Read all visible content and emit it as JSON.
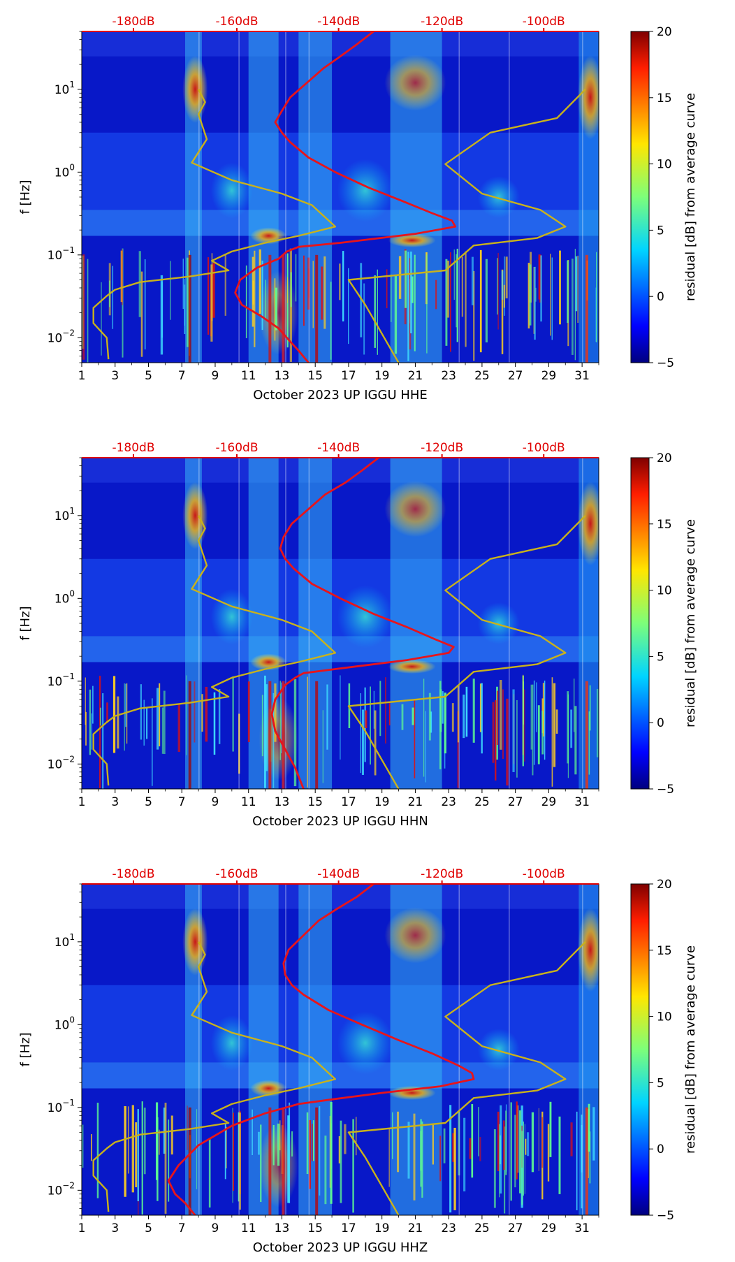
{
  "chart_data": [
    {
      "type": "heatmap",
      "xlabel": "October 2023 UP IGGU  HHE",
      "ylabel": "f [Hz]",
      "x_ticks": [
        "1",
        "3",
        "5",
        "7",
        "9",
        "11",
        "13",
        "15",
        "17",
        "19",
        "21",
        "23",
        "25",
        "27",
        "29",
        "31"
      ],
      "xlim": [
        1,
        32
      ],
      "y_scale": "log",
      "ylim": [
        0.005,
        50
      ],
      "y_ticks": [
        {
          "value": 0.01,
          "base": "10",
          "exp": "−2"
        },
        {
          "value": 0.1,
          "base": "10",
          "exp": "−1"
        },
        {
          "value": 1,
          "base": "10",
          "exp": "0"
        },
        {
          "value": 10,
          "base": "10",
          "exp": "1"
        }
      ],
      "top_axis": {
        "color": "#e00000",
        "ticks": [
          {
            "day": 4.1,
            "label": "-180dB"
          },
          {
            "day": 10.3,
            "label": "-160dB"
          },
          {
            "day": 16.4,
            "label": "-140dB"
          },
          {
            "day": 22.6,
            "label": "-120dB"
          },
          {
            "day": 28.7,
            "label": "-100dB"
          }
        ]
      },
      "colorbar": {
        "label": "residual [dB] from average curve",
        "range": [
          -5,
          20
        ],
        "ticks": [
          "−5",
          "0",
          "5",
          "10",
          "15",
          "20"
        ]
      },
      "series": [
        {
          "color": "#e8141a",
          "points": [
            [
              18.5,
              50
            ],
            [
              17.5,
              35
            ],
            [
              16.5,
              25
            ],
            [
              15.5,
              18
            ],
            [
              14.5,
              12
            ],
            [
              13.5,
              8
            ],
            [
              13.0,
              5.5
            ],
            [
              12.6,
              4
            ],
            [
              13.0,
              3
            ],
            [
              13.5,
              2.3
            ],
            [
              14.6,
              1.5
            ],
            [
              16.2,
              1.0
            ],
            [
              18.2,
              0.65
            ],
            [
              20.2,
              0.45
            ],
            [
              22.0,
              0.32
            ],
            [
              23.2,
              0.26
            ],
            [
              23.4,
              0.22
            ],
            [
              21.0,
              0.18
            ],
            [
              16.5,
              0.14
            ],
            [
              14.0,
              0.125
            ],
            [
              13.3,
              0.11
            ],
            [
              12.8,
              0.09
            ],
            [
              11.5,
              0.07
            ],
            [
              10.5,
              0.05
            ],
            [
              10.2,
              0.035
            ],
            [
              10.6,
              0.025
            ],
            [
              11.8,
              0.018
            ],
            [
              12.8,
              0.013
            ],
            [
              13.5,
              0.009
            ],
            [
              14.0,
              0.007
            ],
            [
              14.6,
              0.005
            ]
          ]
        },
        {
          "color": "#c9b21c",
          "points": [
            [
              8.0,
              10
            ],
            [
              8.4,
              7
            ],
            [
              8.0,
              5
            ],
            [
              8.5,
              2.5
            ],
            [
              7.6,
              1.3
            ],
            [
              10.0,
              0.8
            ],
            [
              13.0,
              0.55
            ],
            [
              14.8,
              0.4
            ],
            [
              16.2,
              0.22
            ],
            [
              14.0,
              0.17
            ],
            [
              12.0,
              0.14
            ],
            [
              10.0,
              0.11
            ],
            [
              8.8,
              0.085
            ],
            [
              9.8,
              0.065
            ],
            [
              7.5,
              0.055
            ],
            [
              4.5,
              0.047
            ],
            [
              3.0,
              0.038
            ],
            [
              2.5,
              0.032
            ],
            [
              1.7,
              0.023
            ],
            [
              1.7,
              0.015
            ],
            [
              2.5,
              0.01
            ],
            [
              2.6,
              0.0055
            ]
          ]
        },
        {
          "color": "#c9b21c",
          "points": [
            [
              31.2,
              10
            ],
            [
              29.5,
              4.5
            ],
            [
              25.5,
              3.0
            ],
            [
              22.8,
              1.25
            ],
            [
              25.0,
              0.55
            ],
            [
              28.5,
              0.35
            ],
            [
              30.0,
              0.22
            ],
            [
              28.3,
              0.16
            ],
            [
              24.5,
              0.13
            ],
            [
              22.8,
              0.065
            ],
            [
              17.0,
              0.05
            ],
            [
              18.0,
              0.025
            ],
            [
              20.0,
              0.005
            ]
          ]
        }
      ]
    },
    {
      "type": "heatmap",
      "xlabel": "October 2023 UP IGGU  HHN",
      "ylabel": "f [Hz]",
      "x_ticks": [
        "1",
        "3",
        "5",
        "7",
        "9",
        "11",
        "13",
        "15",
        "17",
        "19",
        "21",
        "23",
        "25",
        "27",
        "29",
        "31"
      ],
      "xlim": [
        1,
        32
      ],
      "y_scale": "log",
      "ylim": [
        0.005,
        50
      ],
      "y_ticks": [
        {
          "value": 0.01,
          "base": "10",
          "exp": "−2"
        },
        {
          "value": 0.1,
          "base": "10",
          "exp": "−1"
        },
        {
          "value": 1,
          "base": "10",
          "exp": "0"
        },
        {
          "value": 10,
          "base": "10",
          "exp": "1"
        }
      ],
      "top_axis": {
        "color": "#e00000",
        "ticks": [
          {
            "day": 4.1,
            "label": "-180dB"
          },
          {
            "day": 10.3,
            "label": "-160dB"
          },
          {
            "day": 16.4,
            "label": "-140dB"
          },
          {
            "day": 22.6,
            "label": "-120dB"
          },
          {
            "day": 28.7,
            "label": "-100dB"
          }
        ]
      },
      "colorbar": {
        "label": "residual [dB] from average curve",
        "range": [
          -5,
          20
        ],
        "ticks": [
          "−5",
          "0",
          "5",
          "10",
          "15",
          "20"
        ]
      },
      "series": [
        {
          "color": "#e8141a",
          "points": [
            [
              18.8,
              50
            ],
            [
              17.8,
              35
            ],
            [
              16.8,
              25
            ],
            [
              15.6,
              18
            ],
            [
              14.6,
              12
            ],
            [
              13.6,
              8
            ],
            [
              13.1,
              5.5
            ],
            [
              12.9,
              4
            ],
            [
              13.2,
              3
            ],
            [
              13.7,
              2.3
            ],
            [
              14.8,
              1.5
            ],
            [
              16.5,
              1.0
            ],
            [
              18.5,
              0.65
            ],
            [
              20.5,
              0.45
            ],
            [
              22.2,
              0.32
            ],
            [
              23.3,
              0.26
            ],
            [
              23.0,
              0.22
            ],
            [
              20.5,
              0.18
            ],
            [
              16.2,
              0.14
            ],
            [
              14.3,
              0.125
            ],
            [
              13.8,
              0.11
            ],
            [
              13.2,
              0.09
            ],
            [
              12.6,
              0.06
            ],
            [
              12.4,
              0.04
            ],
            [
              12.6,
              0.025
            ],
            [
              13.2,
              0.015
            ],
            [
              13.8,
              0.009
            ],
            [
              14.3,
              0.005
            ]
          ]
        },
        {
          "color": "#c9b21c",
          "points": [
            [
              8.0,
              10
            ],
            [
              8.4,
              7
            ],
            [
              8.0,
              5
            ],
            [
              8.5,
              2.5
            ],
            [
              7.6,
              1.3
            ],
            [
              10.0,
              0.8
            ],
            [
              13.0,
              0.55
            ],
            [
              14.8,
              0.4
            ],
            [
              16.2,
              0.22
            ],
            [
              14.0,
              0.17
            ],
            [
              12.0,
              0.14
            ],
            [
              10.0,
              0.11
            ],
            [
              8.8,
              0.085
            ],
            [
              9.8,
              0.065
            ],
            [
              7.5,
              0.055
            ],
            [
              4.5,
              0.047
            ],
            [
              3.0,
              0.038
            ],
            [
              2.5,
              0.032
            ],
            [
              1.7,
              0.023
            ],
            [
              1.7,
              0.015
            ],
            [
              2.5,
              0.01
            ],
            [
              2.6,
              0.0055
            ]
          ]
        },
        {
          "color": "#c9b21c",
          "points": [
            [
              31.2,
              10
            ],
            [
              29.5,
              4.5
            ],
            [
              25.5,
              3.0
            ],
            [
              22.8,
              1.25
            ],
            [
              25.0,
              0.55
            ],
            [
              28.5,
              0.35
            ],
            [
              30.0,
              0.22
            ],
            [
              28.3,
              0.16
            ],
            [
              24.5,
              0.13
            ],
            [
              22.8,
              0.065
            ],
            [
              17.0,
              0.05
            ],
            [
              18.0,
              0.025
            ],
            [
              20.0,
              0.005
            ]
          ]
        }
      ]
    },
    {
      "type": "heatmap",
      "xlabel": "October 2023 UP IGGU  HHZ",
      "ylabel": "f [Hz]",
      "x_ticks": [
        "1",
        "3",
        "5",
        "7",
        "9",
        "11",
        "13",
        "15",
        "17",
        "19",
        "21",
        "23",
        "25",
        "27",
        "29",
        "31"
      ],
      "xlim": [
        1,
        32
      ],
      "y_scale": "log",
      "ylim": [
        0.005,
        50
      ],
      "y_ticks": [
        {
          "value": 0.01,
          "base": "10",
          "exp": "−2"
        },
        {
          "value": 0.1,
          "base": "10",
          "exp": "−1"
        },
        {
          "value": 1,
          "base": "10",
          "exp": "0"
        },
        {
          "value": 10,
          "base": "10",
          "exp": "1"
        }
      ],
      "top_axis": {
        "color": "#e00000",
        "ticks": [
          {
            "day": 4.1,
            "label": "-180dB"
          },
          {
            "day": 10.3,
            "label": "-160dB"
          },
          {
            "day": 16.4,
            "label": "-140dB"
          },
          {
            "day": 22.6,
            "label": "-120dB"
          },
          {
            "day": 28.7,
            "label": "-100dB"
          }
        ]
      },
      "colorbar": {
        "label": "residual [dB] from average curve",
        "range": [
          -5,
          20
        ],
        "ticks": [
          "−5",
          "0",
          "5",
          "10",
          "15",
          "20"
        ]
      },
      "series": [
        {
          "color": "#e8141a",
          "points": [
            [
              18.5,
              50
            ],
            [
              17.5,
              35
            ],
            [
              16.3,
              25
            ],
            [
              15.2,
              18
            ],
            [
              14.3,
              12
            ],
            [
              13.4,
              8
            ],
            [
              13.1,
              5.5
            ],
            [
              13.2,
              4
            ],
            [
              13.6,
              3
            ],
            [
              14.3,
              2.3
            ],
            [
              15.8,
              1.5
            ],
            [
              17.8,
              1.0
            ],
            [
              20.0,
              0.65
            ],
            [
              22.0,
              0.45
            ],
            [
              23.6,
              0.32
            ],
            [
              24.4,
              0.26
            ],
            [
              24.5,
              0.22
            ],
            [
              22.5,
              0.18
            ],
            [
              19.0,
              0.15
            ],
            [
              16.0,
              0.125
            ],
            [
              14.0,
              0.11
            ],
            [
              12.0,
              0.085
            ],
            [
              10.0,
              0.06
            ],
            [
              8.0,
              0.035
            ],
            [
              6.8,
              0.02
            ],
            [
              6.2,
              0.013
            ],
            [
              6.6,
              0.009
            ],
            [
              7.2,
              0.007
            ],
            [
              7.8,
              0.005
            ]
          ]
        },
        {
          "color": "#c9b21c",
          "points": [
            [
              8.0,
              10
            ],
            [
              8.4,
              7
            ],
            [
              8.0,
              5
            ],
            [
              8.5,
              2.5
            ],
            [
              7.6,
              1.3
            ],
            [
              10.0,
              0.8
            ],
            [
              13.0,
              0.55
            ],
            [
              14.8,
              0.4
            ],
            [
              16.2,
              0.22
            ],
            [
              14.0,
              0.17
            ],
            [
              12.0,
              0.14
            ],
            [
              10.0,
              0.11
            ],
            [
              8.8,
              0.085
            ],
            [
              9.8,
              0.065
            ],
            [
              7.5,
              0.055
            ],
            [
              4.5,
              0.047
            ],
            [
              3.0,
              0.038
            ],
            [
              2.5,
              0.032
            ],
            [
              1.7,
              0.023
            ],
            [
              1.7,
              0.015
            ],
            [
              2.5,
              0.01
            ],
            [
              2.6,
              0.0055
            ]
          ]
        },
        {
          "color": "#c9b21c",
          "points": [
            [
              31.2,
              10
            ],
            [
              29.5,
              4.5
            ],
            [
              25.5,
              3.0
            ],
            [
              22.8,
              1.25
            ],
            [
              25.0,
              0.55
            ],
            [
              28.5,
              0.35
            ],
            [
              30.0,
              0.22
            ],
            [
              28.3,
              0.16
            ],
            [
              24.5,
              0.13
            ],
            [
              22.8,
              0.065
            ],
            [
              17.0,
              0.05
            ],
            [
              18.0,
              0.025
            ],
            [
              20.0,
              0.005
            ]
          ]
        }
      ]
    }
  ]
}
